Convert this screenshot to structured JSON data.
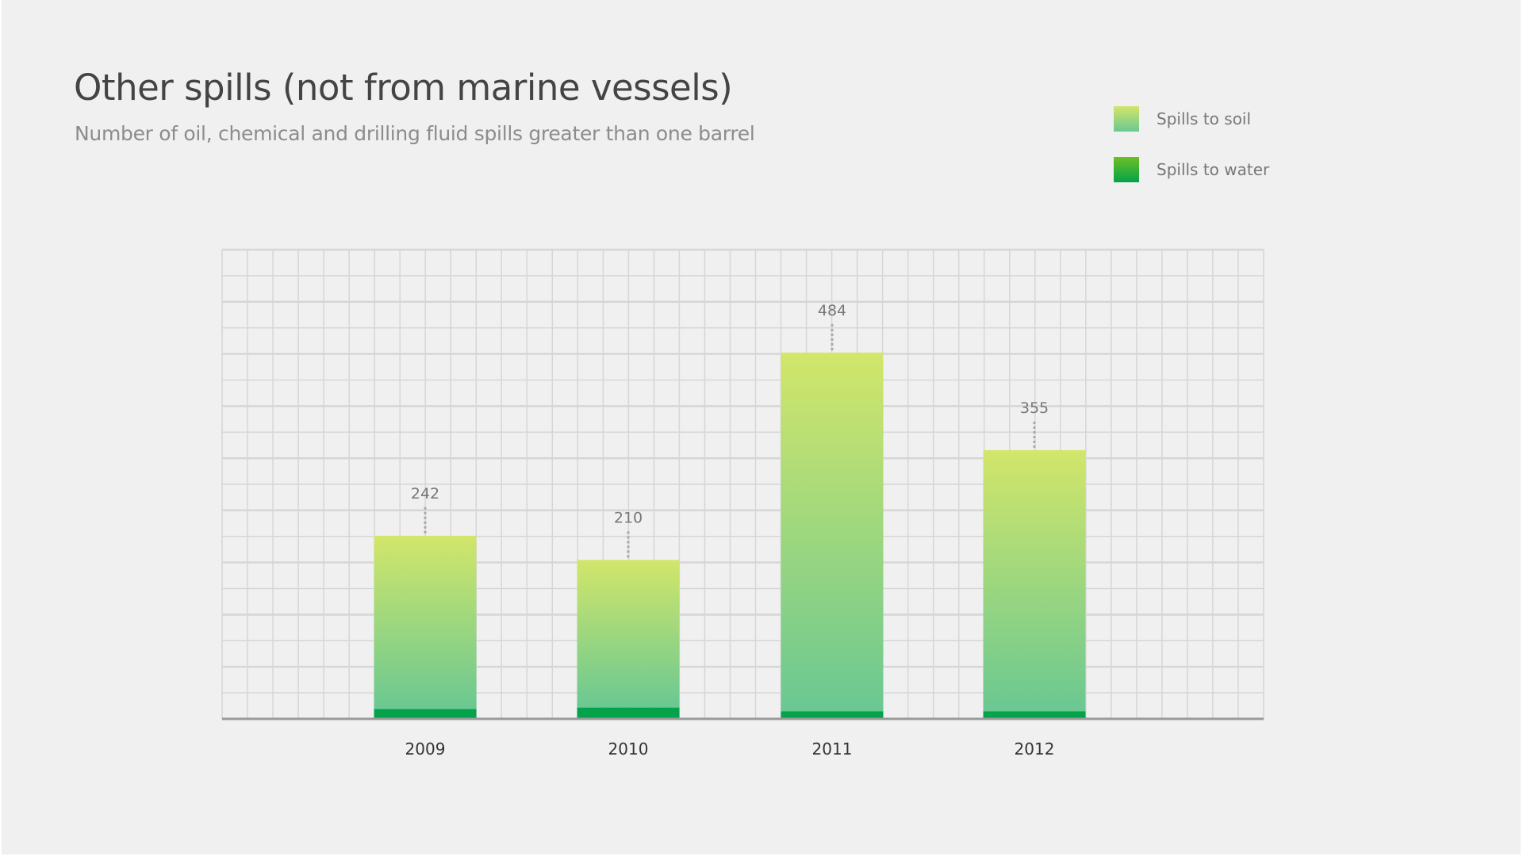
{
  "header": {
    "title": "Other spills (not from marine vessels)",
    "subtitle": "Number of oil, chemical and drilling fluid spills greater than one barrel"
  },
  "legend": [
    {
      "label": "Spills to soil",
      "color_top": "#d2e66a",
      "color_bottom": "#6ac892"
    },
    {
      "label": "Spills to water",
      "color_top": "#6cc024",
      "color_bottom": "#04a24a"
    }
  ],
  "chart_data": {
    "type": "bar",
    "stacked": true,
    "title": "Other spills (not from marine vessels)",
    "subtitle": "Number of oil, chemical and drilling fluid spills greater than one barrel",
    "xlabel": "",
    "ylabel": "",
    "categories": [
      "2009",
      "2010",
      "2011",
      "2012"
    ],
    "series": [
      {
        "name": "Spills to water",
        "values": [
          13,
          15,
          10,
          10
        ],
        "color": "#04a24a"
      },
      {
        "name": "Spills to soil",
        "values": [
          229,
          195,
          474,
          345
        ],
        "gradient": [
          "#d2e66a",
          "#6ac892"
        ]
      }
    ],
    "totals": [
      242,
      210,
      484,
      355
    ],
    "total_labels": [
      "242",
      "210",
      "484",
      "355"
    ],
    "ylim": [
      0,
      620
    ],
    "grid": true,
    "y_axis_labels": false,
    "legend_position": "top-right"
  }
}
